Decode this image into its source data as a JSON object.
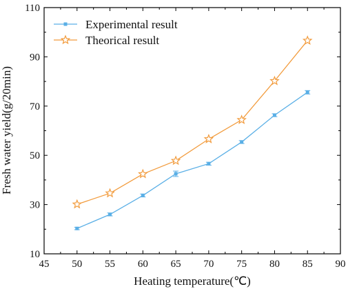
{
  "chart_data": {
    "type": "line",
    "title": "",
    "xlabel": "Heating temperature(℃)",
    "ylabel": "Fresh water yield(g/20min)",
    "xlim": [
      45,
      90
    ],
    "ylim": [
      10,
      110
    ],
    "x_ticks": [
      45,
      50,
      55,
      60,
      65,
      70,
      75,
      80,
      85,
      90
    ],
    "y_ticks": [
      10,
      30,
      50,
      70,
      90,
      110
    ],
    "grid": false,
    "legend_position": "top-left",
    "x": [
      50,
      55,
      60,
      65,
      70,
      75,
      80,
      85
    ],
    "series": [
      {
        "name": "Experimental result",
        "color": "#5aafe6",
        "marker": "square",
        "values": [
          20.3,
          26.0,
          33.7,
          42.5,
          46.6,
          55.4,
          66.3,
          75.6
        ],
        "error": [
          0.5,
          0.6,
          0.6,
          1.1,
          0.6,
          0.6,
          0.6,
          0.7
        ]
      },
      {
        "name": "Theorical result",
        "color": "#f29b3c",
        "marker": "star",
        "values": [
          30.1,
          34.6,
          42.4,
          47.8,
          56.6,
          64.4,
          80.2,
          96.6
        ]
      }
    ]
  }
}
